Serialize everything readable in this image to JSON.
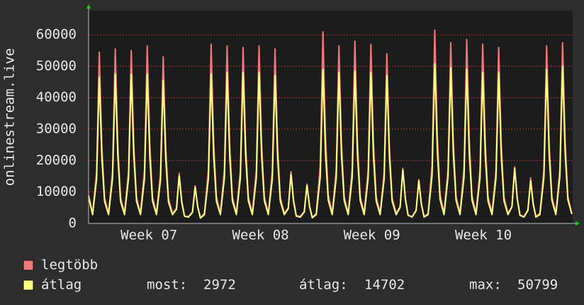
{
  "chart_data": {
    "type": "line",
    "y_label": "onlinestream.live",
    "x": [
      0,
      0.25,
      0.5,
      0.67,
      0.83,
      1,
      1.25,
      1.5,
      1.67,
      1.83,
      2,
      2.25,
      2.5,
      2.67,
      2.83,
      3,
      3.25,
      3.5,
      3.67,
      3.83,
      4,
      4.25,
      4.5,
      4.67,
      4.83,
      5,
      5.25,
      5.5,
      5.67,
      5.83,
      6,
      6.25,
      6.5,
      6.67,
      6.83,
      7,
      7.25,
      7.5,
      7.67,
      7.83,
      8,
      8.25,
      8.5,
      8.67,
      8.83,
      9,
      9.25,
      9.5,
      9.67,
      9.83,
      10,
      10.25,
      10.5,
      10.67,
      10.83,
      11,
      11.25,
      11.5,
      11.67,
      11.83,
      12,
      12.25,
      12.5,
      12.67,
      12.83,
      13,
      13.25,
      13.5,
      13.67,
      13.83,
      14,
      14.25,
      14.5,
      14.67,
      14.83,
      15,
      15.25,
      15.5,
      15.67,
      15.83,
      16,
      16.25,
      16.5,
      16.67,
      16.83,
      17,
      17.25,
      17.5,
      17.67,
      17.83,
      18,
      18.25,
      18.5,
      18.67,
      18.83,
      19,
      19.25,
      19.5,
      19.67,
      19.83,
      20,
      20.25,
      20.5,
      20.67,
      20.83,
      21,
      21.25,
      21.5,
      21.67,
      21.83,
      22,
      22.25,
      22.5,
      22.67,
      22.83,
      23,
      23.25,
      23.5,
      23.67,
      23.83,
      24,
      24.25,
      24.5,
      24.67,
      24.83,
      25,
      25.25,
      25.5,
      25.67,
      25.83,
      26,
      26.25,
      26.5,
      26.67,
      26.83,
      27,
      27.25,
      27.5,
      27.67,
      27.83,
      28,
      28.25,
      28.5,
      28.67,
      28.83,
      29,
      29.25,
      29.5,
      29.67,
      29.83,
      30,
      30.25
    ],
    "xlim": [
      0,
      30.3
    ],
    "xticks": [
      {
        "value": 3.78,
        "label": "Week 07"
      },
      {
        "value": 10.76,
        "label": "Week 08"
      },
      {
        "value": 17.73,
        "label": "Week 09"
      },
      {
        "value": 24.71,
        "label": "Week 10"
      }
    ],
    "ylim": [
      0,
      67700
    ],
    "yticks": [
      0,
      10000,
      20000,
      30000,
      40000,
      50000,
      60000
    ],
    "grid": true,
    "series": [
      {
        "name": "legtöbb",
        "color": "#f07878",
        "values": [
          9000,
          3200,
          16400,
          54500,
          24500,
          8200,
          3200,
          16700,
          55500,
          25000,
          8300,
          3200,
          16500,
          55000,
          24800,
          8300,
          3200,
          17000,
          56500,
          25400,
          8500,
          3200,
          15900,
          53000,
          23900,
          8000,
          3200,
          4800,
          16000,
          7200,
          2400,
          2200,
          3600,
          12000,
          5400,
          1800,
          3200,
          17100,
          57000,
          25700,
          8600,
          3200,
          17000,
          56500,
          25400,
          8500,
          3200,
          16800,
          56000,
          25200,
          8400,
          3200,
          17000,
          56500,
          25400,
          8500,
          3200,
          16700,
          55500,
          25000,
          8300,
          3200,
          5000,
          16500,
          7400,
          2500,
          2200,
          3800,
          12500,
          5600,
          1900,
          3200,
          18300,
          61000,
          27500,
          9200,
          3200,
          17000,
          56500,
          25400,
          8500,
          3200,
          17400,
          58000,
          26100,
          8700,
          3200,
          17100,
          57000,
          25700,
          8600,
          3200,
          16200,
          54000,
          24300,
          8100,
          3200,
          5300,
          17500,
          7900,
          2600,
          2200,
          4200,
          14000,
          6300,
          2100,
          3200,
          18500,
          61500,
          27700,
          9200,
          3200,
          17300,
          57500,
          25900,
          8600,
          3200,
          17600,
          58500,
          26300,
          8800,
          3200,
          17100,
          57000,
          25700,
          8600,
          3200,
          16800,
          56000,
          25200,
          8400,
          3200,
          5400,
          18000,
          8100,
          2700,
          2200,
          4400,
          14500,
          6500,
          2200,
          3200,
          17000,
          56500,
          25400,
          8500,
          3200,
          17300,
          57500,
          25900,
          8600,
          3000
        ]
      },
      {
        "name": "átlag",
        "color": "#ffff80",
        "values": [
          8500,
          2800,
          14000,
          46500,
          20900,
          7000,
          2800,
          14300,
          47500,
          21400,
          7100,
          2800,
          14300,
          47500,
          21400,
          7100,
          2800,
          14300,
          47500,
          21400,
          7100,
          2800,
          13700,
          45500,
          20500,
          6800,
          2800,
          4500,
          15000,
          6800,
          2300,
          2000,
          3500,
          11500,
          5200,
          1700,
          2800,
          14300,
          47500,
          21400,
          7100,
          2800,
          14400,
          48000,
          21600,
          7200,
          2800,
          14400,
          48000,
          21600,
          7200,
          2800,
          14400,
          48000,
          21600,
          7200,
          2800,
          14100,
          47000,
          21200,
          7100,
          2800,
          4700,
          15500,
          7000,
          2300,
          2000,
          3600,
          12000,
          5400,
          1800,
          2800,
          14700,
          49000,
          22100,
          7400,
          2800,
          14400,
          48000,
          21600,
          7200,
          2800,
          14600,
          48500,
          21800,
          7300,
          2800,
          14400,
          48000,
          21600,
          7200,
          2800,
          14100,
          47000,
          21200,
          7100,
          2800,
          5100,
          17000,
          7700,
          2600,
          2000,
          4100,
          13500,
          6100,
          2000,
          2800,
          15200,
          50799,
          22900,
          7600,
          2800,
          14900,
          49500,
          22300,
          7400,
          2800,
          14700,
          49000,
          22100,
          7400,
          2800,
          14400,
          48000,
          21600,
          7200,
          2800,
          14400,
          48000,
          21600,
          7200,
          2800,
          5300,
          17500,
          7900,
          2600,
          2000,
          4100,
          13500,
          6100,
          2000,
          2800,
          14700,
          49000,
          22100,
          7400,
          2800,
          15000,
          50000,
          22500,
          7500,
          2972
        ]
      }
    ],
    "stats": [
      {
        "label": "most:",
        "value": 2972
      },
      {
        "label": "átlag:",
        "value": 14702
      },
      {
        "label": "max:",
        "value": 50799
      }
    ]
  }
}
